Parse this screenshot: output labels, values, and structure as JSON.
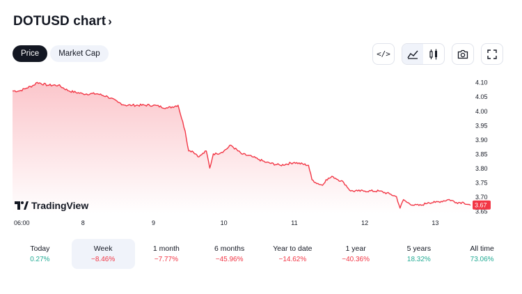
{
  "header": {
    "title": "DOTUSD chart",
    "chevron": "›"
  },
  "tabs": [
    {
      "label": "Price",
      "active": true
    },
    {
      "label": "Market Cap",
      "active": false
    }
  ],
  "toolbar": {
    "embed_label": "</>",
    "icons": [
      "embed-icon",
      "area-chart-icon",
      "candles-icon",
      "camera-icon",
      "fullscreen-icon"
    ],
    "selected": "area-chart-icon"
  },
  "logo": {
    "text": "TradingView"
  },
  "colors": {
    "line": "#f23645",
    "fill_top": "#fbc6cb",
    "fill_bottom": "#ffffff",
    "last_badge": "#f23645",
    "positive": "#22ab94",
    "negative": "#f23645"
  },
  "chart_data": {
    "type": "area",
    "symbol": "DOTUSD",
    "x_tick_labels": [
      "06:00",
      "8",
      "9",
      "10",
      "11",
      "12",
      "13"
    ],
    "y_tick_labels": [
      "4.10",
      "4.05",
      "4.00",
      "3.95",
      "3.90",
      "3.85",
      "3.80",
      "3.75",
      "3.70",
      "3.65"
    ],
    "ylim": [
      3.64,
      4.12
    ],
    "x_range_days": [
      7.0,
      13.5
    ],
    "x_tick_days": [
      7.0,
      8.0,
      9.0,
      10.0,
      11.0,
      12.0,
      13.0
    ],
    "last_value_label": "3.67",
    "series": [
      {
        "x": [
          7.0,
          7.1,
          7.2,
          7.3,
          7.35,
          7.5,
          7.65,
          7.8,
          8.0,
          8.2,
          8.35,
          8.5,
          8.6,
          8.7,
          9.0,
          9.2,
          9.35,
          9.45,
          9.5,
          9.55,
          9.65,
          9.75,
          9.8,
          9.85,
          9.9,
          10.0,
          10.1,
          10.25,
          10.4,
          10.5,
          10.6,
          10.8,
          11.0,
          11.2,
          11.25,
          11.3,
          11.4,
          11.45,
          11.55,
          11.7,
          11.8,
          11.9,
          12.0,
          12.2,
          12.35,
          12.45,
          12.5,
          12.55,
          12.6,
          12.7,
          12.8,
          12.9,
          13.0,
          13.2,
          13.3,
          13.4,
          13.5
        ],
        "y": [
          4.07,
          4.07,
          4.08,
          4.09,
          4.1,
          4.09,
          4.09,
          4.07,
          4.06,
          4.06,
          4.05,
          4.03,
          4.02,
          4.02,
          4.02,
          4.01,
          4.02,
          3.93,
          3.86,
          3.86,
          3.84,
          3.86,
          3.8,
          3.85,
          3.85,
          3.86,
          3.88,
          3.85,
          3.84,
          3.83,
          3.82,
          3.81,
          3.82,
          3.81,
          3.76,
          3.75,
          3.74,
          3.76,
          3.77,
          3.75,
          3.72,
          3.72,
          3.72,
          3.72,
          3.71,
          3.7,
          3.66,
          3.69,
          3.68,
          3.67,
          3.67,
          3.68,
          3.68,
          3.69,
          3.68,
          3.68,
          3.67
        ]
      }
    ]
  },
  "performance": [
    {
      "label": "Today",
      "value": "0.27%",
      "trend": "pos",
      "selected": false
    },
    {
      "label": "Week",
      "value": "−8.46%",
      "trend": "neg",
      "selected": true
    },
    {
      "label": "1 month",
      "value": "−7.77%",
      "trend": "neg",
      "selected": false
    },
    {
      "label": "6 months",
      "value": "−45.96%",
      "trend": "neg",
      "selected": false
    },
    {
      "label": "Year to date",
      "value": "−14.62%",
      "trend": "neg",
      "selected": false
    },
    {
      "label": "1 year",
      "value": "−40.36%",
      "trend": "neg",
      "selected": false
    },
    {
      "label": "5 years",
      "value": "18.32%",
      "trend": "pos",
      "selected": false
    },
    {
      "label": "All time",
      "value": "73.06%",
      "trend": "pos",
      "selected": false
    }
  ]
}
